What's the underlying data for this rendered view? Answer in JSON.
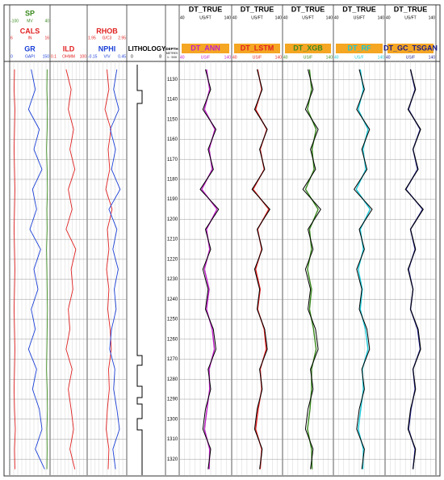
{
  "chart_data": {
    "type": "well-log",
    "ylim": [
      1121,
      1328
    ],
    "yticks": [
      1130,
      1140,
      1150,
      1160,
      1170,
      1180,
      1190,
      1200,
      1210,
      1220,
      1230,
      1240,
      1250,
      1260,
      1270,
      1280,
      1290,
      1300,
      1310,
      1320
    ],
    "depth_label": "DEPTH",
    "depth_unit": "METRES",
    "depth_scale": "1 : 500",
    "lithology_label": "LITHOLOGY",
    "lithology_xlim": [
      0,
      8
    ],
    "depth": [
      1125,
      1135,
      1145,
      1155,
      1165,
      1175,
      1185,
      1195,
      1205,
      1215,
      1225,
      1235,
      1245,
      1255,
      1265,
      1275,
      1285,
      1295,
      1305,
      1315,
      1325
    ],
    "curves": [
      {
        "name": "SP",
        "unit": "MV",
        "color": "#3a8a1e",
        "xlim": [
          -100,
          40
        ],
        "values": [
          30,
          29,
          31,
          30,
          28,
          30,
          31,
          29,
          30,
          28,
          29,
          30,
          31,
          30,
          29,
          28,
          30,
          31,
          29,
          30,
          29
        ]
      },
      {
        "name": "CALS",
        "unit": "IN",
        "color": "#e02020",
        "xlim": [
          6,
          16
        ],
        "values": [
          7.2,
          7.1,
          7.3,
          7.2,
          7.1,
          7.2,
          7.3,
          7.2,
          7.1,
          7.2,
          7.3,
          7.2,
          7.1,
          7.2,
          7.3,
          7.2,
          7.1,
          7.2,
          7.4,
          7.2,
          7.3
        ]
      },
      {
        "name": "GR",
        "unit": "GAPI",
        "color": "#1a3fd6",
        "xlim": [
          0,
          150
        ],
        "values": [
          80,
          95,
          70,
          110,
          90,
          120,
          85,
          100,
          75,
          115,
          90,
          105,
          80,
          95,
          70,
          100,
          85,
          110,
          120,
          95,
          130
        ]
      },
      {
        "name": "ILD",
        "unit": "OHMM",
        "color": "#e02020",
        "xlim": [
          0.1,
          100
        ],
        "log": true,
        "values": [
          2,
          5,
          3,
          8,
          4,
          10,
          3,
          6,
          2,
          12,
          5,
          7,
          3,
          4,
          2,
          6,
          3,
          5,
          8,
          4,
          10
        ]
      },
      {
        "name": "RHOB",
        "unit": "G/C3",
        "color": "#e02020",
        "xlim": [
          1.95,
          2.95
        ],
        "values": [
          2.45,
          2.5,
          2.4,
          2.55,
          2.48,
          2.52,
          2.42,
          2.58,
          2.46,
          2.5,
          2.44,
          2.5,
          2.47,
          2.53,
          2.56,
          2.49,
          2.51,
          2.46,
          2.43,
          2.5,
          2.48
        ]
      },
      {
        "name": "NPHI",
        "unit": "V/V",
        "color": "#1a3fd6",
        "xlim": [
          -0.15,
          0.45
        ],
        "values": [
          0.3,
          0.25,
          0.33,
          0.2,
          0.28,
          0.22,
          0.35,
          0.18,
          0.3,
          0.24,
          0.32,
          0.26,
          0.29,
          0.22,
          0.19,
          0.27,
          0.25,
          0.3,
          0.34,
          0.24,
          0.28
        ]
      }
    ],
    "dt_true": {
      "name": "DT_TRUE",
      "unit": "US/FT",
      "color": "#000000",
      "xlim": [
        40,
        140
      ],
      "values": [
        90,
        100,
        85,
        110,
        95,
        105,
        80,
        115,
        90,
        100,
        85,
        95,
        90,
        105,
        110,
        95,
        100,
        90,
        85,
        100,
        95
      ]
    },
    "predictions": [
      {
        "name": "DT_ANN",
        "unit": "US/F",
        "color": "#c020c8",
        "xlim": [
          40,
          140
        ],
        "values": [
          92,
          98,
          88,
          108,
          97,
          103,
          83,
          112,
          92,
          98,
          88,
          97,
          92,
          103,
          107,
          97,
          98,
          93,
          88,
          98,
          97
        ]
      },
      {
        "name": "DT_LSTM",
        "unit": "US/F",
        "color": "#e02020",
        "xlim": [
          40,
          140
        ],
        "values": [
          91,
          99,
          87,
          109,
          96,
          104,
          82,
          113,
          91,
          99,
          87,
          96,
          91,
          104,
          108,
          96,
          99,
          92,
          87,
          99,
          96
        ]
      },
      {
        "name": "DT_XGB",
        "unit": "US/F",
        "color": "#3a8a1e",
        "xlim": [
          40,
          140
        ],
        "values": [
          93,
          97,
          89,
          106,
          98,
          102,
          85,
          110,
          93,
          97,
          89,
          97,
          93,
          101,
          106,
          97,
          97,
          94,
          89,
          97,
          98
        ]
      },
      {
        "name": "DT_RF",
        "unit": "US/F",
        "color": "#18c8d8",
        "xlim": [
          40,
          140
        ],
        "values": [
          92,
          98,
          88,
          107,
          97,
          103,
          84,
          111,
          92,
          98,
          88,
          96,
          92,
          102,
          107,
          96,
          98,
          93,
          88,
          98,
          97
        ]
      },
      {
        "name": "DT_GC_TSGAN",
        "unit": "US/F",
        "color": "#1a1a8a",
        "xlim": [
          40,
          140
        ],
        "values": [
          90,
          99,
          86,
          109,
          95,
          104,
          81,
          114,
          90,
          99,
          86,
          95,
          90,
          104,
          109,
          95,
          99,
          91,
          86,
          99,
          95
        ]
      }
    ]
  }
}
